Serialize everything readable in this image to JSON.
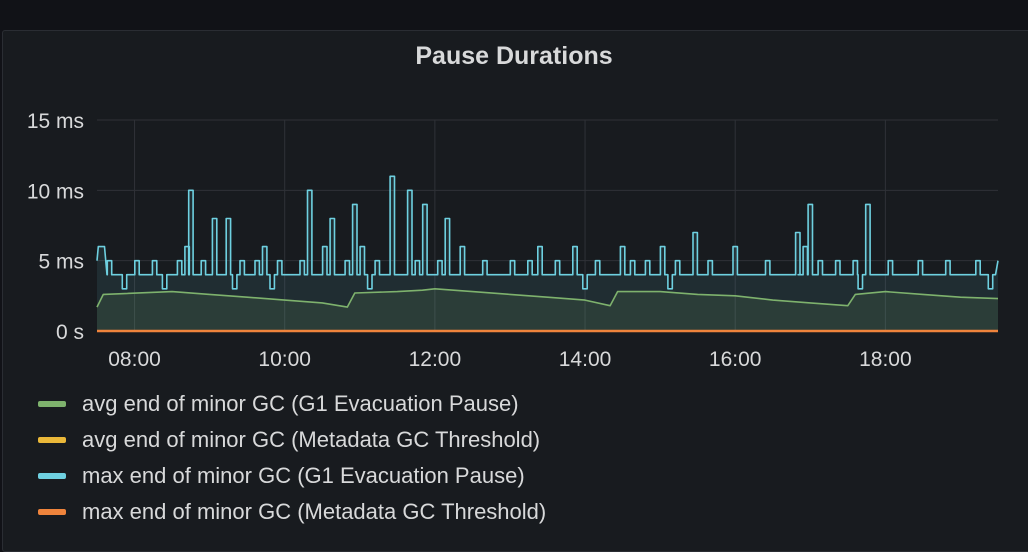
{
  "panel": {
    "title": "Pause Durations"
  },
  "chart_data": {
    "type": "line",
    "title": "Pause Durations",
    "xlabel": "",
    "ylabel": "",
    "x_range": [
      "07:30",
      "19:30"
    ],
    "ylim": [
      0,
      15
    ],
    "y_ticks": [
      {
        "value": 0,
        "label": "0 s"
      },
      {
        "value": 5,
        "label": "5 ms"
      },
      {
        "value": 10,
        "label": "10 ms"
      },
      {
        "value": 15,
        "label": "15 ms"
      }
    ],
    "x_ticks": [
      "08:00",
      "10:00",
      "12:00",
      "14:00",
      "16:00",
      "18:00"
    ],
    "grid": true,
    "legend_position": "bottom",
    "series": [
      {
        "name": "avg end of minor GC (G1 Evacuation Pause)",
        "color": "#7eb26d",
        "fill": true,
        "points": [
          [
            "07:30",
            1.7
          ],
          [
            "07:35",
            2.6
          ],
          [
            "08:30",
            2.8
          ],
          [
            "09:00",
            2.6
          ],
          [
            "09:30",
            2.4
          ],
          [
            "10:00",
            2.2
          ],
          [
            "10:30",
            2.0
          ],
          [
            "10:50",
            1.7
          ],
          [
            "10:56",
            2.7
          ],
          [
            "11:30",
            2.8
          ],
          [
            "11:50",
            2.9
          ],
          [
            "12:00",
            3.0
          ],
          [
            "12:30",
            2.8
          ],
          [
            "13:00",
            2.6
          ],
          [
            "13:30",
            2.4
          ],
          [
            "14:00",
            2.2
          ],
          [
            "14:20",
            1.8
          ],
          [
            "14:26",
            2.8
          ],
          [
            "15:00",
            2.8
          ],
          [
            "15:30",
            2.6
          ],
          [
            "16:00",
            2.5
          ],
          [
            "16:30",
            2.2
          ],
          [
            "17:00",
            2.0
          ],
          [
            "17:30",
            1.8
          ],
          [
            "17:36",
            2.6
          ],
          [
            "18:00",
            2.8
          ],
          [
            "18:30",
            2.6
          ],
          [
            "19:00",
            2.4
          ],
          [
            "19:30",
            2.3
          ]
        ]
      },
      {
        "name": "avg end of minor GC (Metadata GC Threshold)",
        "color": "#eab839",
        "fill": false,
        "points": [
          [
            "07:30",
            0
          ],
          [
            "08:45",
            0
          ],
          [
            "12:00",
            0
          ],
          [
            "15:00",
            0
          ],
          [
            "18:45",
            0
          ],
          [
            "19:30",
            0
          ]
        ]
      },
      {
        "name": "max end of minor GC (G1 Evacuation Pause)",
        "color": "#6ed0e0",
        "fill": false,
        "baseline": 4,
        "start_points": [
          [
            "07:30",
            5
          ],
          [
            "07:31",
            6
          ],
          [
            "07:36",
            6
          ],
          [
            "07:38",
            4
          ]
        ],
        "end_points": [
          [
            "19:28",
            4
          ],
          [
            "19:30",
            5
          ]
        ],
        "spikes": [
          [
            "07:40",
            5
          ],
          [
            "07:52",
            3
          ],
          [
            "08:02",
            5
          ],
          [
            "08:10",
            4
          ],
          [
            "08:16",
            5
          ],
          [
            "08:24",
            3
          ],
          [
            "08:36",
            5
          ],
          [
            "08:42",
            6
          ],
          [
            "08:45",
            10
          ],
          [
            "08:55",
            5
          ],
          [
            "09:04",
            8
          ],
          [
            "09:10",
            4
          ],
          [
            "09:15",
            8
          ],
          [
            "09:20",
            3
          ],
          [
            "09:26",
            5
          ],
          [
            "09:32",
            4
          ],
          [
            "09:38",
            5
          ],
          [
            "09:44",
            6
          ],
          [
            "09:50",
            3
          ],
          [
            "09:56",
            5
          ],
          [
            "10:06",
            4
          ],
          [
            "10:14",
            5
          ],
          [
            "10:20",
            10
          ],
          [
            "10:26",
            4
          ],
          [
            "10:32",
            6
          ],
          [
            "10:38",
            8
          ],
          [
            "10:44",
            4
          ],
          [
            "10:50",
            5
          ],
          [
            "10:56",
            9
          ],
          [
            "11:02",
            6
          ],
          [
            "11:08",
            3
          ],
          [
            "11:14",
            5
          ],
          [
            "11:26",
            11
          ],
          [
            "11:32",
            4
          ],
          [
            "11:40",
            10
          ],
          [
            "11:46",
            5
          ],
          [
            "11:52",
            9
          ],
          [
            "11:58",
            4
          ],
          [
            "12:04",
            5
          ],
          [
            "12:10",
            8
          ],
          [
            "12:16",
            4
          ],
          [
            "12:22",
            6
          ],
          [
            "12:28",
            4
          ],
          [
            "12:40",
            5
          ],
          [
            "12:52",
            4
          ],
          [
            "13:02",
            5
          ],
          [
            "13:10",
            4
          ],
          [
            "13:16",
            5
          ],
          [
            "13:24",
            6
          ],
          [
            "13:32",
            4
          ],
          [
            "13:38",
            5
          ],
          [
            "13:44",
            4
          ],
          [
            "13:52",
            6
          ],
          [
            "14:00",
            3
          ],
          [
            "14:10",
            5
          ],
          [
            "14:18",
            4
          ],
          [
            "14:30",
            6
          ],
          [
            "14:38",
            5
          ],
          [
            "14:44",
            4
          ],
          [
            "14:50",
            5
          ],
          [
            "15:02",
            6
          ],
          [
            "15:08",
            3
          ],
          [
            "15:14",
            5
          ],
          [
            "15:20",
            4
          ],
          [
            "15:28",
            7
          ],
          [
            "15:34",
            4
          ],
          [
            "15:40",
            5
          ],
          [
            "15:46",
            4
          ],
          [
            "16:00",
            6
          ],
          [
            "16:12",
            4
          ],
          [
            "16:26",
            5
          ],
          [
            "16:38",
            4
          ],
          [
            "16:50",
            7
          ],
          [
            "16:52",
            4
          ],
          [
            "16:56",
            6
          ],
          [
            "17:00",
            9
          ],
          [
            "17:04",
            4
          ],
          [
            "17:08",
            5
          ],
          [
            "17:16",
            4
          ],
          [
            "17:22",
            5
          ],
          [
            "17:30",
            4
          ],
          [
            "17:36",
            5
          ],
          [
            "17:40",
            3
          ],
          [
            "17:46",
            9
          ],
          [
            "17:52",
            4
          ],
          [
            "18:04",
            5
          ],
          [
            "18:16",
            4
          ],
          [
            "18:28",
            5
          ],
          [
            "18:40",
            4
          ],
          [
            "18:50",
            5
          ],
          [
            "19:02",
            4
          ],
          [
            "19:14",
            5
          ],
          [
            "19:24",
            3
          ]
        ]
      },
      {
        "name": "max end of minor GC (Metadata GC Threshold)",
        "color": "#ef843c",
        "fill": false,
        "points": [
          [
            "07:30",
            0
          ],
          [
            "08:45",
            0
          ],
          [
            "12:00",
            0
          ],
          [
            "15:00",
            0
          ],
          [
            "18:45",
            0
          ],
          [
            "19:30",
            0
          ]
        ]
      }
    ]
  }
}
